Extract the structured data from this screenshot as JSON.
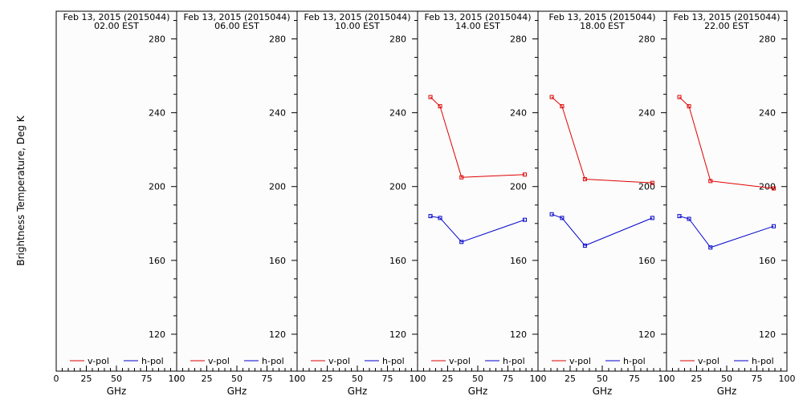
{
  "chart_data": {
    "type": "line",
    "ylabel": "Brightness Temperature, Deg K",
    "xlabel": "GHz",
    "xlim": [
      0,
      100
    ],
    "ylim": [
      100,
      295
    ],
    "x_ticks": [
      0,
      25,
      50,
      75,
      100
    ],
    "y_ticks": [
      120,
      160,
      200,
      240,
      280
    ],
    "legend_position": "bottom",
    "colors": {
      "v-pol": "#e00000",
      "h-pol": "#0000cc"
    },
    "panels": [
      {
        "title": "Feb 13, 2015 (2015044)",
        "subtitle": "02.00 EST",
        "series": [
          {
            "name": "v-pol",
            "x": [],
            "y": []
          },
          {
            "name": "h-pol",
            "x": [],
            "y": []
          }
        ]
      },
      {
        "title": "Feb 13, 2015 (2015044)",
        "subtitle": "06.00 EST",
        "series": [
          {
            "name": "v-pol",
            "x": [],
            "y": []
          },
          {
            "name": "h-pol",
            "x": [],
            "y": []
          }
        ]
      },
      {
        "title": "Feb 13, 2015 (2015044)",
        "subtitle": "10.00 EST",
        "series": [
          {
            "name": "v-pol",
            "x": [],
            "y": []
          },
          {
            "name": "h-pol",
            "x": [],
            "y": []
          }
        ]
      },
      {
        "title": "Feb 13, 2015 (2015044)",
        "subtitle": "14.00 EST",
        "series": [
          {
            "name": "v-pol",
            "x": [
              10.7,
              18.7,
              36.5,
              89.0
            ],
            "y": [
              248.5,
              243.5,
              205.0,
              206.5
            ]
          },
          {
            "name": "h-pol",
            "x": [
              10.7,
              18.7,
              36.5,
              89.0
            ],
            "y": [
              184.0,
              183.0,
              170.0,
              182.0
            ]
          }
        ]
      },
      {
        "title": "Feb 13, 2015 (2015044)",
        "subtitle": "18.00 EST",
        "series": [
          {
            "name": "v-pol",
            "x": [
              10.7,
              18.7,
              36.5,
              89.0
            ],
            "y": [
              248.5,
              243.5,
              204.0,
              202.0
            ]
          },
          {
            "name": "h-pol",
            "x": [
              10.7,
              18.7,
              36.5,
              89.0
            ],
            "y": [
              185.0,
              183.0,
              168.0,
              183.0
            ]
          }
        ]
      },
      {
        "title": "Feb 13, 2015 (2015044)",
        "subtitle": "22.00 EST",
        "series": [
          {
            "name": "v-pol",
            "x": [
              10.7,
              18.7,
              36.5,
              89.0
            ],
            "y": [
              248.5,
              243.5,
              203.0,
              199.0
            ]
          },
          {
            "name": "h-pol",
            "x": [
              10.7,
              18.7,
              36.5,
              89.0
            ],
            "y": [
              184.0,
              182.5,
              167.0,
              178.5
            ]
          }
        ]
      }
    ]
  }
}
